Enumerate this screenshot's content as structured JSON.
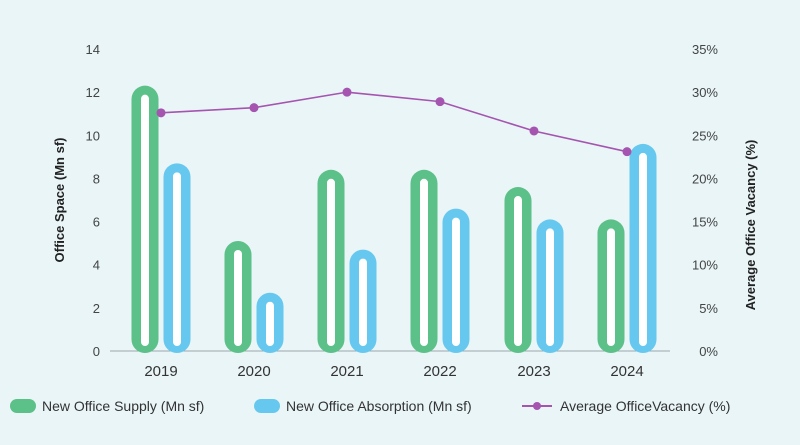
{
  "chart_data": {
    "type": "bar",
    "categories": [
      "2019",
      "2020",
      "2021",
      "2022",
      "2023",
      "2024"
    ],
    "series": [
      {
        "name": "New Office Supply (Mn sf)",
        "type": "bar",
        "axis": "left",
        "color": "#5cc089",
        "values": [
          12.3,
          5.1,
          8.4,
          8.4,
          7.6,
          6.1
        ]
      },
      {
        "name": "New Office Absorption (Mn sf)",
        "type": "bar",
        "axis": "left",
        "color": "#66c8ee",
        "values": [
          8.7,
          2.7,
          4.7,
          6.6,
          6.1,
          9.6
        ]
      },
      {
        "name": "Average OfficeVacancy (%)",
        "type": "line",
        "axis": "right",
        "color": "#a554b0",
        "values": [
          27.6,
          28.2,
          30.0,
          28.9,
          25.5,
          23.1
        ]
      }
    ],
    "ylabel": "Office Space (Mn sf)",
    "y2label": "Average Office Vacancy (%)",
    "ylim": [
      0,
      14
    ],
    "yticks": [
      "0",
      "2",
      "4",
      "6",
      "8",
      "10",
      "12",
      "14"
    ],
    "y2lim": [
      0,
      35
    ],
    "y2ticks": [
      "0%",
      "5%",
      "10%",
      "15%",
      "20%",
      "25%",
      "30%",
      "35%"
    ],
    "grid": false,
    "legend_position": "bottom"
  }
}
